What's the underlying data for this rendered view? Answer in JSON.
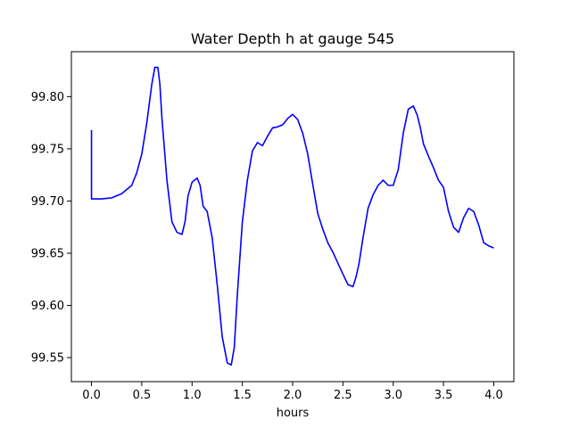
{
  "chart_data": {
    "type": "line",
    "title": "Water Depth h at gauge 545",
    "xlabel": "hours",
    "ylabel": "",
    "xlim": [
      -0.2,
      4.2
    ],
    "ylim": [
      99.527,
      99.843
    ],
    "grid": false,
    "x_ticks": [
      0.0,
      0.5,
      1.0,
      1.5,
      2.0,
      2.5,
      3.0,
      3.5,
      4.0
    ],
    "x_tick_labels": [
      "0.0",
      "0.5",
      "1.0",
      "1.5",
      "2.0",
      "2.5",
      "3.0",
      "3.5",
      "4.0"
    ],
    "y_ticks": [
      99.55,
      99.6,
      99.65,
      99.7,
      99.75,
      99.8
    ],
    "y_tick_labels": [
      "99.55",
      "99.60",
      "99.65",
      "99.70",
      "99.75",
      "99.80"
    ],
    "series": [
      {
        "color": "#0000ff",
        "x": [
          0.0,
          0.0,
          0.1,
          0.2,
          0.3,
          0.4,
          0.45,
          0.5,
          0.55,
          0.6,
          0.63,
          0.66,
          0.68,
          0.7,
          0.75,
          0.8,
          0.85,
          0.9,
          0.93,
          0.96,
          1.0,
          1.05,
          1.08,
          1.11,
          1.15,
          1.2,
          1.25,
          1.3,
          1.35,
          1.39,
          1.42,
          1.45,
          1.5,
          1.55,
          1.6,
          1.65,
          1.7,
          1.75,
          1.8,
          1.85,
          1.9,
          1.95,
          2.0,
          2.05,
          2.1,
          2.15,
          2.2,
          2.25,
          2.3,
          2.35,
          2.4,
          2.5,
          2.55,
          2.6,
          2.63,
          2.66,
          2.7,
          2.75,
          2.8,
          2.85,
          2.9,
          2.95,
          3.0,
          3.05,
          3.1,
          3.15,
          3.2,
          3.24,
          3.27,
          3.3,
          3.35,
          3.4,
          3.45,
          3.5,
          3.55,
          3.6,
          3.65,
          3.7,
          3.75,
          3.8,
          3.85,
          3.9,
          3.95,
          4.0
        ],
        "y": [
          99.768,
          99.702,
          99.702,
          99.703,
          99.707,
          99.715,
          99.727,
          99.745,
          99.775,
          99.812,
          99.828,
          99.828,
          99.812,
          99.78,
          99.72,
          99.68,
          99.67,
          99.668,
          99.68,
          99.705,
          99.718,
          99.722,
          99.715,
          99.695,
          99.69,
          99.665,
          99.62,
          99.57,
          99.545,
          99.543,
          99.56,
          99.61,
          99.68,
          99.72,
          99.748,
          99.756,
          99.753,
          99.762,
          99.77,
          99.771,
          99.773,
          99.779,
          99.783,
          99.778,
          99.765,
          99.745,
          99.716,
          99.688,
          99.673,
          99.66,
          99.651,
          99.63,
          99.62,
          99.618,
          99.627,
          99.64,
          99.665,
          99.693,
          99.706,
          99.715,
          99.72,
          99.715,
          99.715,
          99.73,
          99.765,
          99.788,
          99.791,
          99.782,
          99.77,
          99.755,
          99.743,
          99.732,
          99.72,
          99.713,
          99.69,
          99.675,
          99.67,
          99.684,
          99.693,
          99.69,
          99.677,
          99.66,
          99.657,
          99.655
        ]
      }
    ]
  }
}
